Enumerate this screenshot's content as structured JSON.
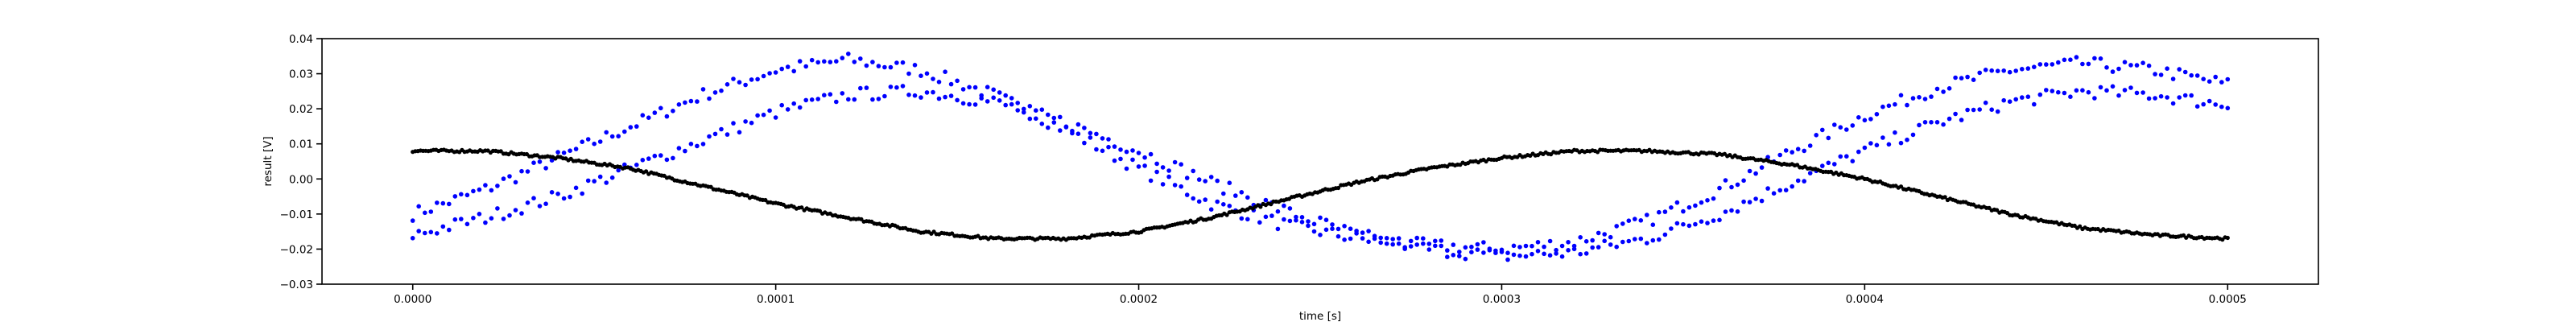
{
  "chart_data": {
    "type": "scatter",
    "title": "",
    "xlabel": "time [s]",
    "ylabel": "result [V]",
    "xlim": [
      -2.5e-05,
      0.000525
    ],
    "ylim": [
      -0.03,
      0.04
    ],
    "xticks": [
      0.0,
      0.0001,
      0.0002,
      0.0003,
      0.0004,
      0.0005
    ],
    "xtick_labels": [
      "0.0000",
      "0.0001",
      "0.0002",
      "0.0003",
      "0.0004",
      "0.0005"
    ],
    "yticks": [
      -0.03,
      -0.02,
      -0.01,
      0.0,
      0.01,
      0.02,
      0.03,
      0.04
    ],
    "ytick_labels": [
      "−0.03",
      "−0.02",
      "−0.01",
      "0.00",
      "0.01",
      "0.02",
      "0.03",
      "0.04"
    ],
    "grid": false,
    "legend": "none",
    "series": [
      {
        "color": "#0000ff",
        "marker": "dot",
        "x": [
          0.0,
          2e-05,
          4e-05,
          6e-05,
          8e-05,
          0.0001,
          0.00012,
          0.00014,
          0.00016,
          0.00018,
          0.0002,
          0.00022,
          0.00024,
          0.00026,
          0.00028,
          0.0003,
          0.00032,
          0.00034,
          0.00036,
          0.00038,
          0.0004,
          0.00042,
          0.00044,
          0.00046,
          0.00048,
          0.0005
        ],
        "y": [
          -0.01,
          -0.003,
          0.006,
          0.015,
          0.024,
          0.031,
          0.034,
          0.031,
          0.024,
          0.014,
          0.003,
          -0.007,
          -0.013,
          -0.017,
          -0.019,
          -0.02,
          -0.018,
          -0.012,
          -0.003,
          0.008,
          0.018,
          0.026,
          0.031,
          0.033,
          0.031,
          0.027
        ]
      },
      {
        "color": "#0000ff",
        "marker": "dot",
        "x": [
          0.0,
          2e-05,
          4e-05,
          6e-05,
          8e-05,
          0.0001,
          0.00012,
          0.00014,
          0.00016,
          0.00018,
          0.0002,
          0.00022,
          0.00024,
          0.00026,
          0.00028,
          0.0003,
          0.00032,
          0.00034,
          0.00036,
          0.00038,
          0.0004,
          0.00042,
          0.00044,
          0.00046,
          0.00048,
          0.0005
        ],
        "y": [
          -0.016,
          -0.011,
          -0.005,
          0.003,
          0.011,
          0.019,
          0.024,
          0.025,
          0.022,
          0.016,
          0.008,
          -0.001,
          -0.009,
          -0.016,
          -0.02,
          -0.022,
          -0.021,
          -0.017,
          -0.01,
          -0.001,
          0.008,
          0.016,
          0.022,
          0.025,
          0.024,
          0.021
        ]
      },
      {
        "color": "#000000",
        "marker": "dot",
        "x": [
          0.0,
          2e-05,
          4e-05,
          6e-05,
          8e-05,
          0.0001,
          0.00012,
          0.00014,
          0.00016,
          0.00018,
          0.0002,
          0.00022,
          0.00024,
          0.00026,
          0.00028,
          0.0003,
          0.00032,
          0.00034,
          0.00036,
          0.00038,
          0.0004,
          0.00042,
          0.00044,
          0.00046,
          0.00048,
          0.0005
        ],
        "y": [
          0.008,
          0.008,
          0.006,
          0.003,
          -0.002,
          -0.007,
          -0.011,
          -0.015,
          -0.017,
          -0.017,
          -0.015,
          -0.011,
          -0.006,
          -0.001,
          0.003,
          0.006,
          0.008,
          0.008,
          0.007,
          0.004,
          0.0,
          -0.005,
          -0.01,
          -0.014,
          -0.016,
          -0.017
        ]
      }
    ]
  }
}
